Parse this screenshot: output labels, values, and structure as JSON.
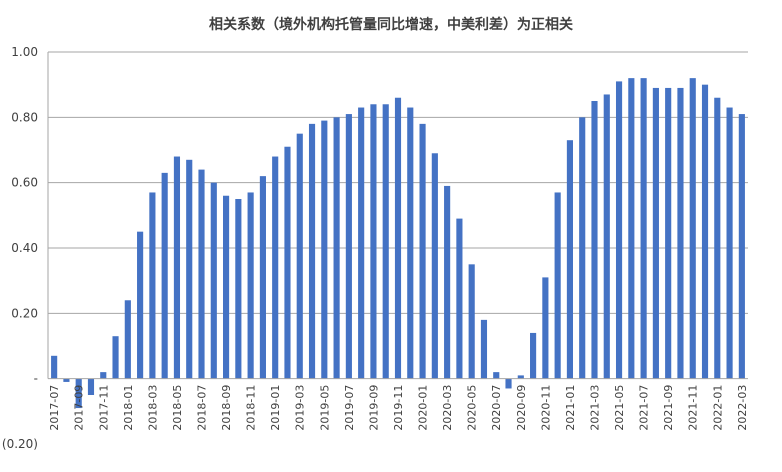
{
  "chart_data": {
    "type": "bar",
    "title": "相关系数（境外机构托管量同比增速，中美利差）为正相关",
    "xlabel": "",
    "ylabel": "",
    "ylim": [
      -0.2,
      1.0
    ],
    "grid": true,
    "legend": "none",
    "bar_color": "#4472C4",
    "y_ticks": [
      {
        "value": 1.0,
        "label": "1.00"
      },
      {
        "value": 0.8,
        "label": "0.80"
      },
      {
        "value": 0.6,
        "label": "0.60"
      },
      {
        "value": 0.4,
        "label": "0.40"
      },
      {
        "value": 0.2,
        "label": "0.20"
      },
      {
        "value": 0.0,
        "label": "-"
      },
      {
        "value": -0.2,
        "label": "(0.20)"
      }
    ],
    "categories": [
      "2017-07",
      "2017-08",
      "2017-09",
      "2017-10",
      "2017-11",
      "2017-12",
      "2018-01",
      "2018-02",
      "2018-03",
      "2018-04",
      "2018-05",
      "2018-06",
      "2018-07",
      "2018-08",
      "2018-09",
      "2018-10",
      "2018-11",
      "2018-12",
      "2019-01",
      "2019-02",
      "2019-03",
      "2019-04",
      "2019-05",
      "2019-06",
      "2019-07",
      "2019-08",
      "2019-09",
      "2019-10",
      "2019-11",
      "2019-12",
      "2020-01",
      "2020-02",
      "2020-03",
      "2020-04",
      "2020-05",
      "2020-06",
      "2020-07",
      "2020-08",
      "2020-09",
      "2020-10",
      "2020-11",
      "2020-12",
      "2021-01",
      "2021-02",
      "2021-03",
      "2021-04",
      "2021-05",
      "2021-06",
      "2021-07",
      "2021-08",
      "2021-09",
      "2021-10",
      "2021-11",
      "2021-12",
      "2022-01",
      "2022-02",
      "2022-03"
    ],
    "x_tick_labels": [
      "2017-07",
      "2017-09",
      "2017-11",
      "2018-01",
      "2018-03",
      "2018-05",
      "2018-07",
      "2018-09",
      "2018-11",
      "2019-01",
      "2019-03",
      "2019-05",
      "2019-07",
      "2019-09",
      "2019-11",
      "2020-01",
      "2020-03",
      "2020-05",
      "2020-07",
      "2020-09",
      "2020-11",
      "2021-01",
      "2021-03",
      "2021-05",
      "2021-07",
      "2021-09",
      "2021-11",
      "2022-01",
      "2022-03"
    ],
    "values": [
      0.07,
      -0.01,
      -0.09,
      -0.05,
      0.02,
      0.13,
      0.24,
      0.45,
      0.57,
      0.63,
      0.68,
      0.67,
      0.64,
      0.6,
      0.56,
      0.55,
      0.57,
      0.62,
      0.68,
      0.71,
      0.75,
      0.78,
      0.79,
      0.8,
      0.81,
      0.83,
      0.84,
      0.84,
      0.86,
      0.83,
      0.78,
      0.69,
      0.59,
      0.49,
      0.35,
      0.18,
      0.02,
      -0.03,
      0.01,
      0.14,
      0.31,
      0.57,
      0.73,
      0.8,
      0.85,
      0.87,
      0.91,
      0.92,
      0.92,
      0.89,
      0.89,
      0.89,
      0.92,
      0.9,
      0.86,
      0.83,
      0.81
    ]
  }
}
